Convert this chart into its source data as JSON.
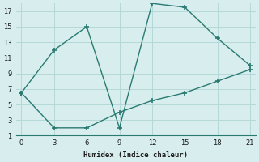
{
  "line1_x": [
    0,
    3,
    6,
    9,
    12,
    15,
    18,
    21
  ],
  "line1_y": [
    6.5,
    12,
    15,
    2,
    18,
    17.5,
    13.5,
    10
  ],
  "line2_x": [
    0,
    3,
    6,
    9,
    12,
    15,
    18,
    21
  ],
  "line2_y": [
    6.5,
    2,
    2,
    4.0,
    5.5,
    6.5,
    8.0,
    9.5
  ],
  "color": "#2a7a72",
  "xlabel": "Humidex (Indice chaleur)",
  "bg_color": "#d8eeee",
  "grid_color": "#b4d8d8",
  "xlim": [
    -0.5,
    21.5
  ],
  "ylim": [
    1,
    18
  ],
  "xticks": [
    0,
    3,
    6,
    9,
    12,
    15,
    18,
    21
  ],
  "yticks": [
    1,
    3,
    5,
    7,
    9,
    11,
    13,
    15,
    17
  ],
  "marker": "+"
}
